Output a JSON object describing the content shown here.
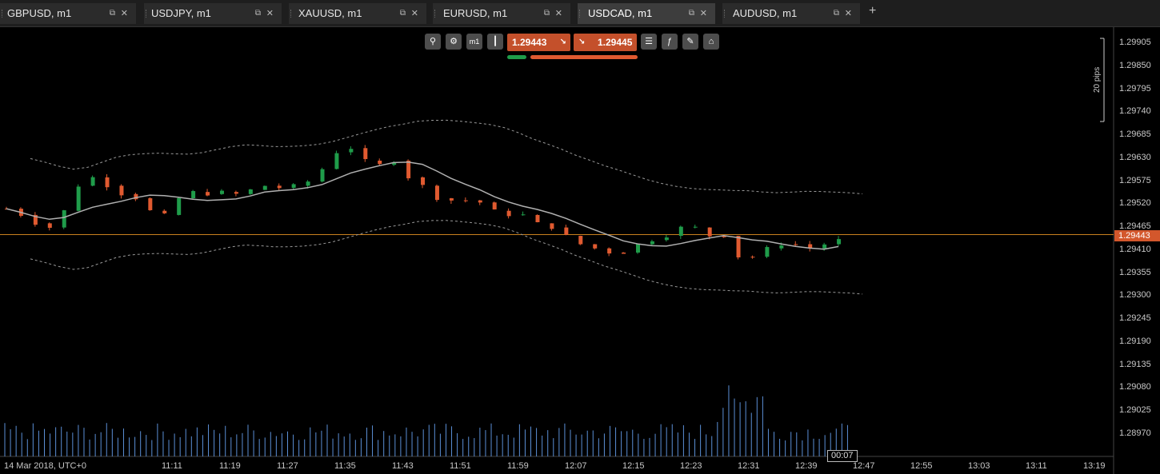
{
  "tabs": [
    {
      "label": "GBPUSD, m1",
      "active": false
    },
    {
      "label": "USDJPY, m1",
      "active": false
    },
    {
      "label": "XAUUSD, m1",
      "active": false
    },
    {
      "label": "EURUSD, m1",
      "active": false
    },
    {
      "label": "USDCAD, m1",
      "active": true
    },
    {
      "label": "AUDUSD, m1",
      "active": false
    }
  ],
  "toolbar": {
    "timeframe": "m1",
    "sell_price": "1.29443",
    "buy_price": "1.29445"
  },
  "price_axis": {
    "labels": [
      "1.29905",
      "1.29850",
      "1.29795",
      "1.29740",
      "1.29685",
      "1.29630",
      "1.29575",
      "1.29520",
      "1.29465",
      "1.29410",
      "1.29355",
      "1.29300",
      "1.29245",
      "1.29190",
      "1.29135",
      "1.29080",
      "1.29025",
      "1.28970"
    ],
    "current_price": "1.29443",
    "pips_label": "20 pips"
  },
  "time_axis": {
    "date_label": "14 Mar 2018, UTC+0",
    "labels": [
      "11:11",
      "11:19",
      "11:27",
      "11:35",
      "11:43",
      "11:51",
      "11:59",
      "12:07",
      "12:15",
      "12:23",
      "12:31",
      "12:39",
      "12:47",
      "12:55",
      "13:03",
      "13:11",
      "13:19"
    ],
    "timer": "00:07"
  },
  "colors": {
    "bull": "#1f9c4a",
    "bear": "#e05a30",
    "price_line": "#c9801e",
    "ma": "#b0b0b0",
    "volume": "#5b8fd6"
  }
}
